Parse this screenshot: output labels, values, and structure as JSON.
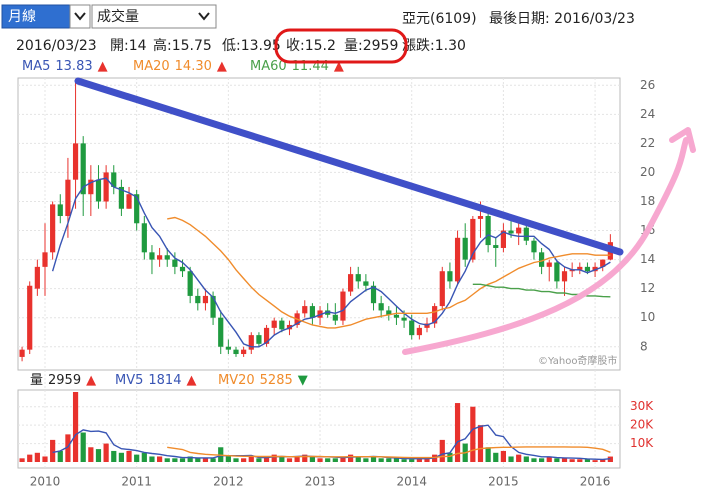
{
  "header": {
    "period": "月線",
    "indicator": "成交量",
    "stock": "亞元(6109)",
    "last_date": "最後日期: 2016/03/23",
    "quote": [
      "2016/03/23",
      "開:14",
      "高:15.75",
      "低:13.95",
      "收:15.2",
      "量:2959",
      "漲跌:1.30"
    ]
  },
  "chart_data": [
    {
      "type": "candlestick",
      "up_color": "#e8322d",
      "down_color": "#1f9a3f",
      "watermark": "©Yahoo奇摩股市",
      "categories": [
        null,
        null,
        null,
        "2010",
        null,
        null,
        null,
        null,
        null,
        null,
        null,
        null,
        null,
        null,
        null,
        "2011",
        null,
        null,
        null,
        null,
        null,
        null,
        null,
        null,
        null,
        null,
        null,
        "2012",
        null,
        null,
        null,
        null,
        null,
        null,
        null,
        null,
        null,
        null,
        null,
        "2013",
        null,
        null,
        null,
        null,
        null,
        null,
        null,
        null,
        null,
        null,
        null,
        "2014",
        null,
        null,
        null,
        null,
        null,
        null,
        null,
        null,
        null,
        null,
        null,
        "2015",
        null,
        null,
        null,
        null,
        null,
        null,
        null,
        null,
        null,
        null,
        null,
        "2016",
        null,
        null
      ],
      "ohlc": {
        "open": [
          7.3,
          7.8,
          12,
          13.5,
          14.5,
          17.8,
          17,
          19.5,
          22,
          18.5,
          19.5,
          18,
          20,
          19,
          17.5,
          18.5,
          16.5,
          14.5,
          14,
          14.3,
          14,
          13.5,
          13.2,
          11.5,
          11,
          11.5,
          10,
          8,
          7.8,
          7.5,
          7.8,
          8.8,
          8.2,
          9.3,
          9.8,
          9.2,
          9.5,
          10.3,
          10.8,
          10,
          10.5,
          10.2,
          9.8,
          11.8,
          13,
          12.5,
          12.2,
          11,
          10.5,
          10.2,
          10,
          9.8,
          8.8,
          9.3,
          9.6,
          10.8,
          13.2,
          12.5,
          15.5,
          14,
          16.8,
          17,
          15,
          14.8,
          16,
          15.8,
          16.2,
          15.3,
          14.5,
          13.5,
          13.8,
          12.5,
          13.2,
          13.3,
          13.5,
          13.2,
          13.5,
          14
        ],
        "high": [
          8,
          12.5,
          14,
          16.5,
          18,
          18.5,
          21,
          26.3,
          22.5,
          20.5,
          20.5,
          20.5,
          20.5,
          19.5,
          19,
          18.8,
          17,
          15,
          14.8,
          14.8,
          14.5,
          14,
          13.5,
          12,
          12,
          11.8,
          10.5,
          8.5,
          8,
          8,
          9,
          9,
          9.5,
          10,
          10,
          9.8,
          10.5,
          11.2,
          11,
          10.8,
          11,
          11,
          12,
          13.5,
          13.5,
          13,
          12.5,
          11.5,
          10.8,
          10.8,
          10.5,
          10.2,
          9.5,
          10,
          11,
          13.5,
          13.8,
          16,
          16.5,
          17,
          18,
          17.2,
          15.5,
          16.5,
          16.8,
          16.5,
          16.5,
          15.5,
          14.8,
          14,
          14,
          13.5,
          13.8,
          13.8,
          13.8,
          13.8,
          14,
          15.75
        ],
        "low": [
          7,
          7.5,
          11.5,
          11.5,
          14,
          16.5,
          15.5,
          17.5,
          17,
          17,
          17.5,
          17.5,
          18.5,
          17,
          17.5,
          16,
          14,
          13,
          13.5,
          13.5,
          13,
          12.8,
          11,
          10.5,
          10.5,
          9.5,
          7.5,
          7.5,
          7.3,
          7.3,
          7.5,
          8,
          8,
          8.8,
          9,
          8.8,
          9.3,
          10,
          9.5,
          9.5,
          10,
          9.5,
          9.5,
          11.5,
          12,
          11.8,
          10.5,
          10,
          9.8,
          9.5,
          9.3,
          8.5,
          8.5,
          9,
          9.3,
          10.5,
          12,
          12.3,
          13.5,
          13.8,
          15.5,
          14.5,
          13.5,
          14.5,
          15.5,
          15,
          15,
          14,
          13,
          12.5,
          12,
          11.5,
          12.8,
          13,
          13,
          12.8,
          13.2,
          13.95
        ],
        "close": [
          7.8,
          12.2,
          13.5,
          14.5,
          17.8,
          17,
          19.5,
          22,
          18.5,
          19.5,
          18,
          20,
          19,
          17.5,
          18.5,
          16.5,
          14.5,
          14,
          14.3,
          14,
          13.5,
          13.2,
          11.5,
          11,
          11.5,
          10,
          8,
          7.8,
          7.5,
          7.8,
          8.8,
          8.2,
          9.3,
          9.8,
          9.2,
          9.5,
          10.3,
          10.8,
          10,
          10.5,
          10.2,
          9.8,
          11.8,
          13,
          12.5,
          12.2,
          11,
          10.5,
          10.2,
          10,
          9.8,
          8.8,
          9.3,
          9.6,
          10.8,
          13.2,
          12.5,
          15.5,
          14,
          16.8,
          17,
          15,
          14.8,
          16,
          15.8,
          16.2,
          15.3,
          14.5,
          13.5,
          13.8,
          12.5,
          13.2,
          13.3,
          13.5,
          13.2,
          13.5,
          14,
          15.2
        ]
      },
      "series": [
        {
          "name": "MA5",
          "color": "#3955b4",
          "values": [
            null,
            null,
            null,
            null,
            13.2,
            15,
            16.5,
            18.2,
            19,
            19.3,
            19.5,
            19.6,
            19,
            18.8,
            18.6,
            18.3,
            17.2,
            16.2,
            15.6,
            14.7,
            14.1,
            13.8,
            13.3,
            12.6,
            11.9,
            11.4,
            10.4,
            9.7,
            9,
            8.2,
            8,
            8,
            8.3,
            8.8,
            9.1,
            9.3,
            9.6,
            9.9,
            10,
            10.2,
            10.4,
            10.3,
            10.5,
            11.1,
            11.5,
            11.9,
            12.1,
            11.8,
            11.3,
            10.8,
            10.3,
            9.9,
            9.6,
            9.5,
            9.7,
            10.3,
            11.1,
            12.3,
            13.2,
            14.4,
            15.2,
            15.7,
            15.5,
            15.9,
            15.7,
            15.6,
            15.6,
            15.6,
            15.1,
            14.7,
            13.9,
            13.5,
            13.3,
            13.3,
            13.1,
            13.3,
            13.5,
            13.83
          ]
        },
        {
          "name": "MA20",
          "color": "#f08c2c",
          "values": [
            null,
            null,
            null,
            null,
            null,
            null,
            null,
            null,
            null,
            null,
            null,
            null,
            null,
            null,
            null,
            null,
            null,
            null,
            null,
            16.8,
            16.9,
            16.7,
            16.4,
            16,
            15.6,
            15.1,
            14.6,
            14,
            13.3,
            12.7,
            12.1,
            11.6,
            11.2,
            10.8,
            10.4,
            10.1,
            9.9,
            9.7,
            9.5,
            9.4,
            9.3,
            9.3,
            9.4,
            9.5,
            9.7,
            9.9,
            10,
            10.1,
            10.2,
            10.3,
            10.3,
            10.3,
            10.3,
            10.3,
            10.4,
            10.6,
            10.7,
            11,
            11.2,
            11.6,
            12,
            12.3,
            12.5,
            12.8,
            13.1,
            13.4,
            13.6,
            13.8,
            13.9,
            14.1,
            14.2,
            14.3,
            14.4,
            14.4,
            14.4,
            14.3,
            14.3,
            14.3
          ]
        },
        {
          "name": "MA60",
          "color": "#4aa04a",
          "values": [
            null,
            null,
            null,
            null,
            null,
            null,
            null,
            null,
            null,
            null,
            null,
            null,
            null,
            null,
            null,
            null,
            null,
            null,
            null,
            null,
            null,
            null,
            null,
            null,
            null,
            null,
            null,
            null,
            null,
            null,
            null,
            null,
            null,
            null,
            null,
            null,
            null,
            null,
            null,
            null,
            null,
            null,
            null,
            null,
            null,
            null,
            null,
            null,
            null,
            null,
            null,
            null,
            null,
            null,
            null,
            null,
            null,
            null,
            null,
            12.3,
            12.3,
            12.2,
            12.1,
            12.1,
            12,
            12,
            11.9,
            11.9,
            11.8,
            11.8,
            11.7,
            11.7,
            11.6,
            11.6,
            11.5,
            11.5,
            11.45,
            11.44
          ]
        }
      ],
      "legend": [
        {
          "name": "MA5",
          "value": "13.83",
          "trend": "▲"
        },
        {
          "name": "MA20",
          "value": "14.30",
          "trend": "▲"
        },
        {
          "name": "MA60",
          "value": "11.44",
          "trend": "▲"
        }
      ],
      "ylim": [
        6.4,
        26.5
      ],
      "yticks": [
        8,
        10,
        12,
        14,
        16,
        18,
        20,
        22,
        24,
        26
      ],
      "grid": true
    },
    {
      "type": "bar",
      "values": [
        2000,
        4000,
        5000,
        3000,
        12000,
        6000,
        15000,
        38000,
        16000,
        8000,
        7000,
        10000,
        6000,
        5000,
        6000,
        4000,
        5000,
        3000,
        3000,
        2000,
        2000,
        2000,
        3000,
        2000,
        2000,
        2000,
        8000,
        3000,
        2000,
        2000,
        3000,
        2000,
        3000,
        4000,
        3000,
        2000,
        3000,
        4000,
        3000,
        2000,
        2000,
        2000,
        3000,
        4000,
        3000,
        2000,
        3000,
        2000,
        2000,
        2000,
        1500,
        1500,
        2000,
        2000,
        4000,
        12000,
        5000,
        32000,
        10000,
        30000,
        20000,
        8000,
        5000,
        6000,
        3000,
        4000,
        3000,
        2000,
        2000,
        3000,
        2000,
        2000,
        1500,
        1500,
        1500,
        1000,
        1500,
        2959
      ],
      "series": [
        {
          "name": "MV5",
          "color": "#3955b4",
          "values": [
            null,
            null,
            null,
            null,
            5200,
            6000,
            8200,
            14800,
            17400,
            16600,
            16800,
            15800,
            9400,
            7200,
            6800,
            6200,
            5200,
            4600,
            4200,
            3400,
            3000,
            2400,
            2400,
            2200,
            2200,
            2200,
            3400,
            3400,
            3400,
            3400,
            3600,
            2400,
            2400,
            2800,
            3000,
            2800,
            3000,
            3200,
            3000,
            2800,
            2800,
            2600,
            2400,
            2600,
            2800,
            2800,
            3000,
            2800,
            2400,
            2200,
            1900,
            1800,
            1800,
            1800,
            2200,
            4300,
            5000,
            11000,
            12600,
            17800,
            19400,
            20000,
            14600,
            13800,
            8400,
            5200,
            4200,
            3600,
            2800,
            2800,
            2400,
            2200,
            2100,
            2000,
            1700,
            1500,
            1400,
            1814
          ]
        },
        {
          "name": "MV20",
          "color": "#f08c2c",
          "values": [
            null,
            null,
            null,
            null,
            null,
            null,
            null,
            null,
            null,
            null,
            null,
            null,
            null,
            null,
            null,
            null,
            null,
            null,
            null,
            8000,
            7400,
            6800,
            5200,
            4600,
            4200,
            3900,
            3700,
            3400,
            3200,
            3100,
            3100,
            3000,
            3000,
            3000,
            3000,
            2900,
            2900,
            3000,
            3000,
            3000,
            2800,
            2800,
            2800,
            2900,
            2900,
            2900,
            2900,
            2800,
            2700,
            2600,
            2500,
            2400,
            2400,
            2400,
            2500,
            3000,
            3100,
            4600,
            5000,
            6400,
            7300,
            7600,
            7800,
            8000,
            8000,
            8100,
            8200,
            8200,
            8200,
            8200,
            8200,
            8200,
            8100,
            8100,
            8000,
            7500,
            6900,
            5285
          ]
        }
      ],
      "legend": [
        {
          "name": "量",
          "value": "2959",
          "trend": "▲"
        },
        {
          "name": "MV5",
          "value": "1814",
          "trend": "▲"
        },
        {
          "name": "MV20",
          "value": "5285",
          "trend": "▼"
        }
      ],
      "ylim": [
        0,
        38000
      ],
      "yticks": [
        {
          "value": 10000,
          "label": "10K"
        },
        {
          "value": 20000,
          "label": "20K"
        },
        {
          "value": 30000,
          "label": "30K"
        }
      ]
    }
  ]
}
